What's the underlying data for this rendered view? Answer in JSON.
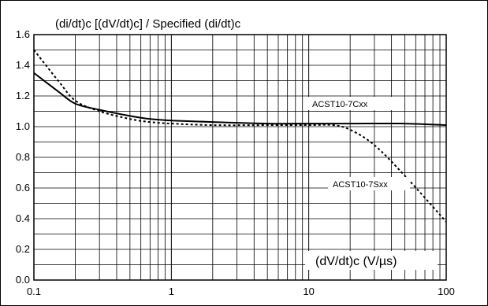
{
  "chart_data": {
    "type": "line",
    "title": "(di/dt)c [(dV/dt)c] / Specified (di/dt)c",
    "xlabel": "(dV/dt)c (V/µs)",
    "ylabel": "",
    "x_scale": "log",
    "xlim": [
      0.1,
      100
    ],
    "ylim": [
      0.0,
      1.6
    ],
    "grid": true,
    "x_ticks": [
      "0.1",
      "1",
      "10",
      "100"
    ],
    "y_ticks": [
      "0.0",
      "0.2",
      "0.4",
      "0.6",
      "0.8",
      "1.0",
      "1.2",
      "1.4",
      "1.6"
    ],
    "series": [
      {
        "name": "ACST10-7Cxx",
        "style": "solid",
        "x": [
          0.1,
          0.15,
          0.2,
          0.3,
          0.5,
          0.7,
          1,
          2,
          5,
          10,
          20,
          50,
          100
        ],
        "y": [
          1.35,
          1.23,
          1.15,
          1.11,
          1.07,
          1.05,
          1.04,
          1.03,
          1.02,
          1.02,
          1.02,
          1.02,
          1.01
        ]
      },
      {
        "name": "ACST10-7Sxx",
        "style": "dashed",
        "x": [
          0.1,
          0.15,
          0.2,
          0.3,
          0.5,
          0.7,
          1,
          2,
          5,
          10,
          15,
          20,
          30,
          50,
          100
        ],
        "y": [
          1.5,
          1.3,
          1.17,
          1.1,
          1.05,
          1.03,
          1.02,
          1.01,
          1.01,
          1.01,
          1.01,
          0.98,
          0.88,
          0.68,
          0.38
        ]
      }
    ]
  }
}
